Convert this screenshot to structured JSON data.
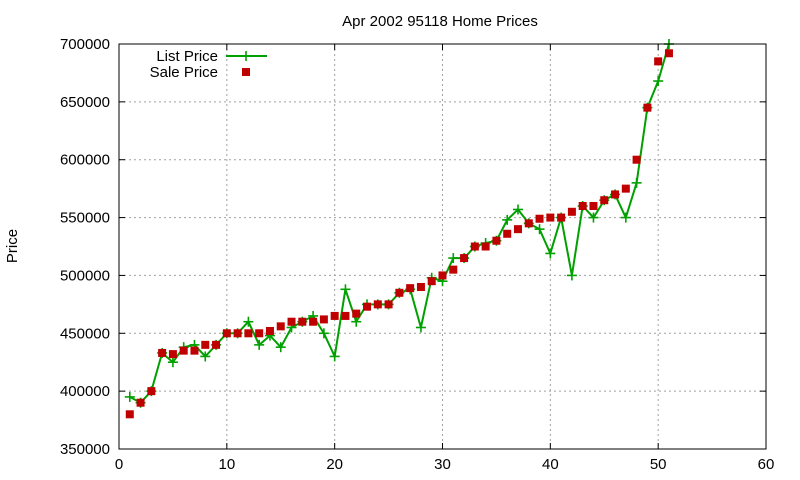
{
  "chart_data": {
    "type": "line",
    "title": "Apr 2002 95118 Home Prices",
    "xlabel": "",
    "ylabel": "Price",
    "xlim": [
      0,
      60
    ],
    "ylim": [
      350000,
      700000
    ],
    "x_ticks": [
      0,
      10,
      20,
      30,
      40,
      50,
      60
    ],
    "y_ticks": [
      350000,
      400000,
      450000,
      500000,
      550000,
      600000,
      650000,
      700000
    ],
    "grid": true,
    "legend_position": "top-left",
    "series": [
      {
        "name": "List Price",
        "style": "line-plus",
        "color": "#00a000",
        "x": [
          1,
          2,
          3,
          4,
          5,
          6,
          7,
          8,
          9,
          10,
          11,
          12,
          13,
          14,
          15,
          16,
          17,
          18,
          19,
          20,
          21,
          22,
          23,
          24,
          25,
          26,
          27,
          28,
          29,
          30,
          31,
          32,
          33,
          34,
          35,
          36,
          37,
          38,
          39,
          40,
          41,
          42,
          43,
          44,
          45,
          46,
          47,
          48,
          49,
          50,
          51
        ],
        "values": [
          395000,
          390000,
          400000,
          433000,
          425000,
          438000,
          440000,
          430000,
          440000,
          450000,
          450000,
          460000,
          440000,
          448000,
          438000,
          455000,
          460000,
          465000,
          450000,
          430000,
          488000,
          460000,
          475000,
          475000,
          475000,
          485000,
          488000,
          455000,
          498000,
          495000,
          515000,
          515000,
          525000,
          528000,
          530000,
          548000,
          557000,
          545000,
          540000,
          519000,
          550000,
          500000,
          560000,
          550000,
          565000,
          570000,
          550000,
          580000,
          645000,
          668000,
          700000
        ]
      },
      {
        "name": "Sale Price",
        "style": "square",
        "color": "#c00000",
        "x": [
          1,
          2,
          3,
          4,
          5,
          6,
          7,
          8,
          9,
          10,
          11,
          12,
          13,
          14,
          15,
          16,
          17,
          18,
          19,
          20,
          21,
          22,
          23,
          24,
          25,
          26,
          27,
          28,
          29,
          30,
          31,
          32,
          33,
          34,
          35,
          36,
          37,
          38,
          39,
          40,
          41,
          42,
          43,
          44,
          45,
          46,
          47,
          48,
          49,
          50,
          51
        ],
        "values": [
          380000,
          390000,
          400000,
          433000,
          432000,
          435000,
          435000,
          440000,
          440000,
          450000,
          450000,
          450000,
          450000,
          452000,
          456000,
          460000,
          460000,
          460000,
          462000,
          465000,
          465000,
          467000,
          473000,
          475000,
          475000,
          485000,
          489000,
          490000,
          495000,
          500000,
          505000,
          515000,
          525000,
          525000,
          530000,
          536000,
          540000,
          545000,
          549000,
          550000,
          550000,
          555000,
          560000,
          560000,
          565000,
          570000,
          575000,
          600000,
          645000,
          685000,
          692000
        ]
      }
    ]
  }
}
